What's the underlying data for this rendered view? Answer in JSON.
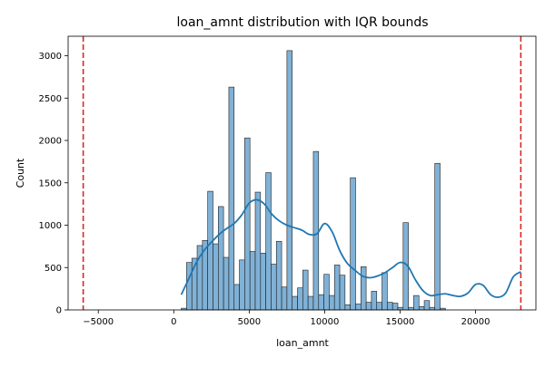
{
  "chart_data": {
    "type": "bar",
    "title": "loan_amnt distribution with IQR bounds",
    "xlabel": "loan_amnt",
    "ylabel": "Count",
    "xlim": [
      -7000,
      24000
    ],
    "ylim": [
      0,
      3230
    ],
    "xticks": [
      -5000,
      0,
      5000,
      10000,
      15000,
      20000
    ],
    "yticks": [
      0,
      500,
      1000,
      1500,
      2000,
      2500,
      3000
    ],
    "bin_start": 500,
    "bin_width": 350,
    "series": [
      {
        "kind": "histogram",
        "values": [
          20,
          560,
          610,
          760,
          820,
          1400,
          780,
          1220,
          620,
          2630,
          300,
          590,
          2030,
          690,
          1390,
          670,
          1620,
          540,
          810,
          270,
          3060,
          160,
          260,
          470,
          160,
          1870,
          180,
          420,
          170,
          530,
          410,
          60,
          1560,
          70,
          510,
          90,
          220,
          90,
          440,
          90,
          80,
          30,
          1030,
          30,
          170,
          40,
          110,
          30,
          1730,
          20
        ],
        "color": "#80b1d6",
        "edgecolor": "#1f1f1f"
      },
      {
        "kind": "kde",
        "x": [
          500,
          1000,
          1500,
          2000,
          2500,
          3000,
          3500,
          4000,
          4500,
          5000,
          5500,
          6000,
          6500,
          7000,
          7500,
          8000,
          8500,
          9000,
          9500,
          10000,
          10500,
          11000,
          11500,
          12000,
          12500,
          13000,
          13500,
          14000,
          14500,
          15000,
          15500,
          16000,
          16500,
          17000,
          17500,
          18000,
          18500,
          19000,
          19500,
          20000,
          20500,
          21000,
          21500,
          22000,
          22500,
          23000
        ],
        "y": [
          180,
          370,
          560,
          700,
          800,
          890,
          960,
          1020,
          1120,
          1260,
          1300,
          1250,
          1130,
          1050,
          1000,
          970,
          940,
          890,
          900,
          1020,
          920,
          700,
          550,
          470,
          400,
          380,
          400,
          440,
          500,
          560,
          520,
          360,
          230,
          170,
          180,
          190,
          170,
          160,
          200,
          300,
          290,
          180,
          150,
          200,
          390,
          450
        ],
        "color": "#1f77b4"
      }
    ],
    "iqr_bounds": {
      "lower": -6000,
      "upper": 23000,
      "color": "#d62728"
    }
  }
}
